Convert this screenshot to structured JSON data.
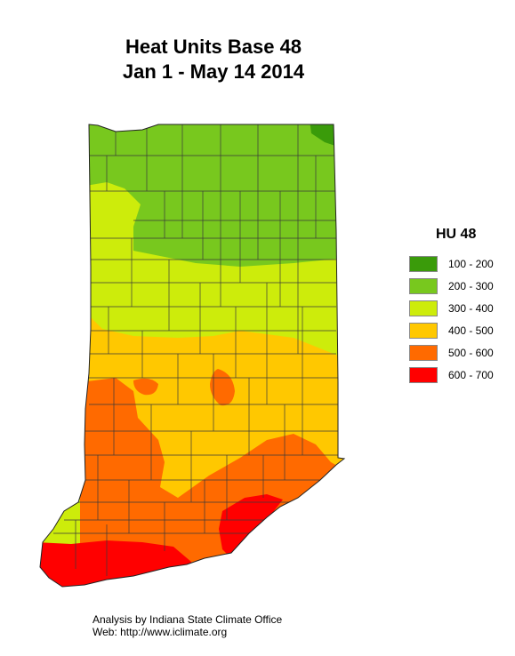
{
  "title_line1": "Heat Units Base 48",
  "title_line2": "Jan 1 - May 14 2014",
  "legend": {
    "title": "HU 48",
    "items": [
      {
        "label": "100 - 200",
        "color": "#3a9b0a"
      },
      {
        "label": "200 - 300",
        "color": "#78c81e"
      },
      {
        "label": "300 - 400",
        "color": "#cdec0b"
      },
      {
        "label": "400 - 500",
        "color": "#ffc800"
      },
      {
        "label": "500 - 600",
        "color": "#ff6a00"
      },
      {
        "label": "600 - 700",
        "color": "#ff0000"
      }
    ]
  },
  "footer": {
    "line1": "Analysis by Indiana State Climate Office",
    "line2": "Web:   http://www.iclimate.org"
  }
}
